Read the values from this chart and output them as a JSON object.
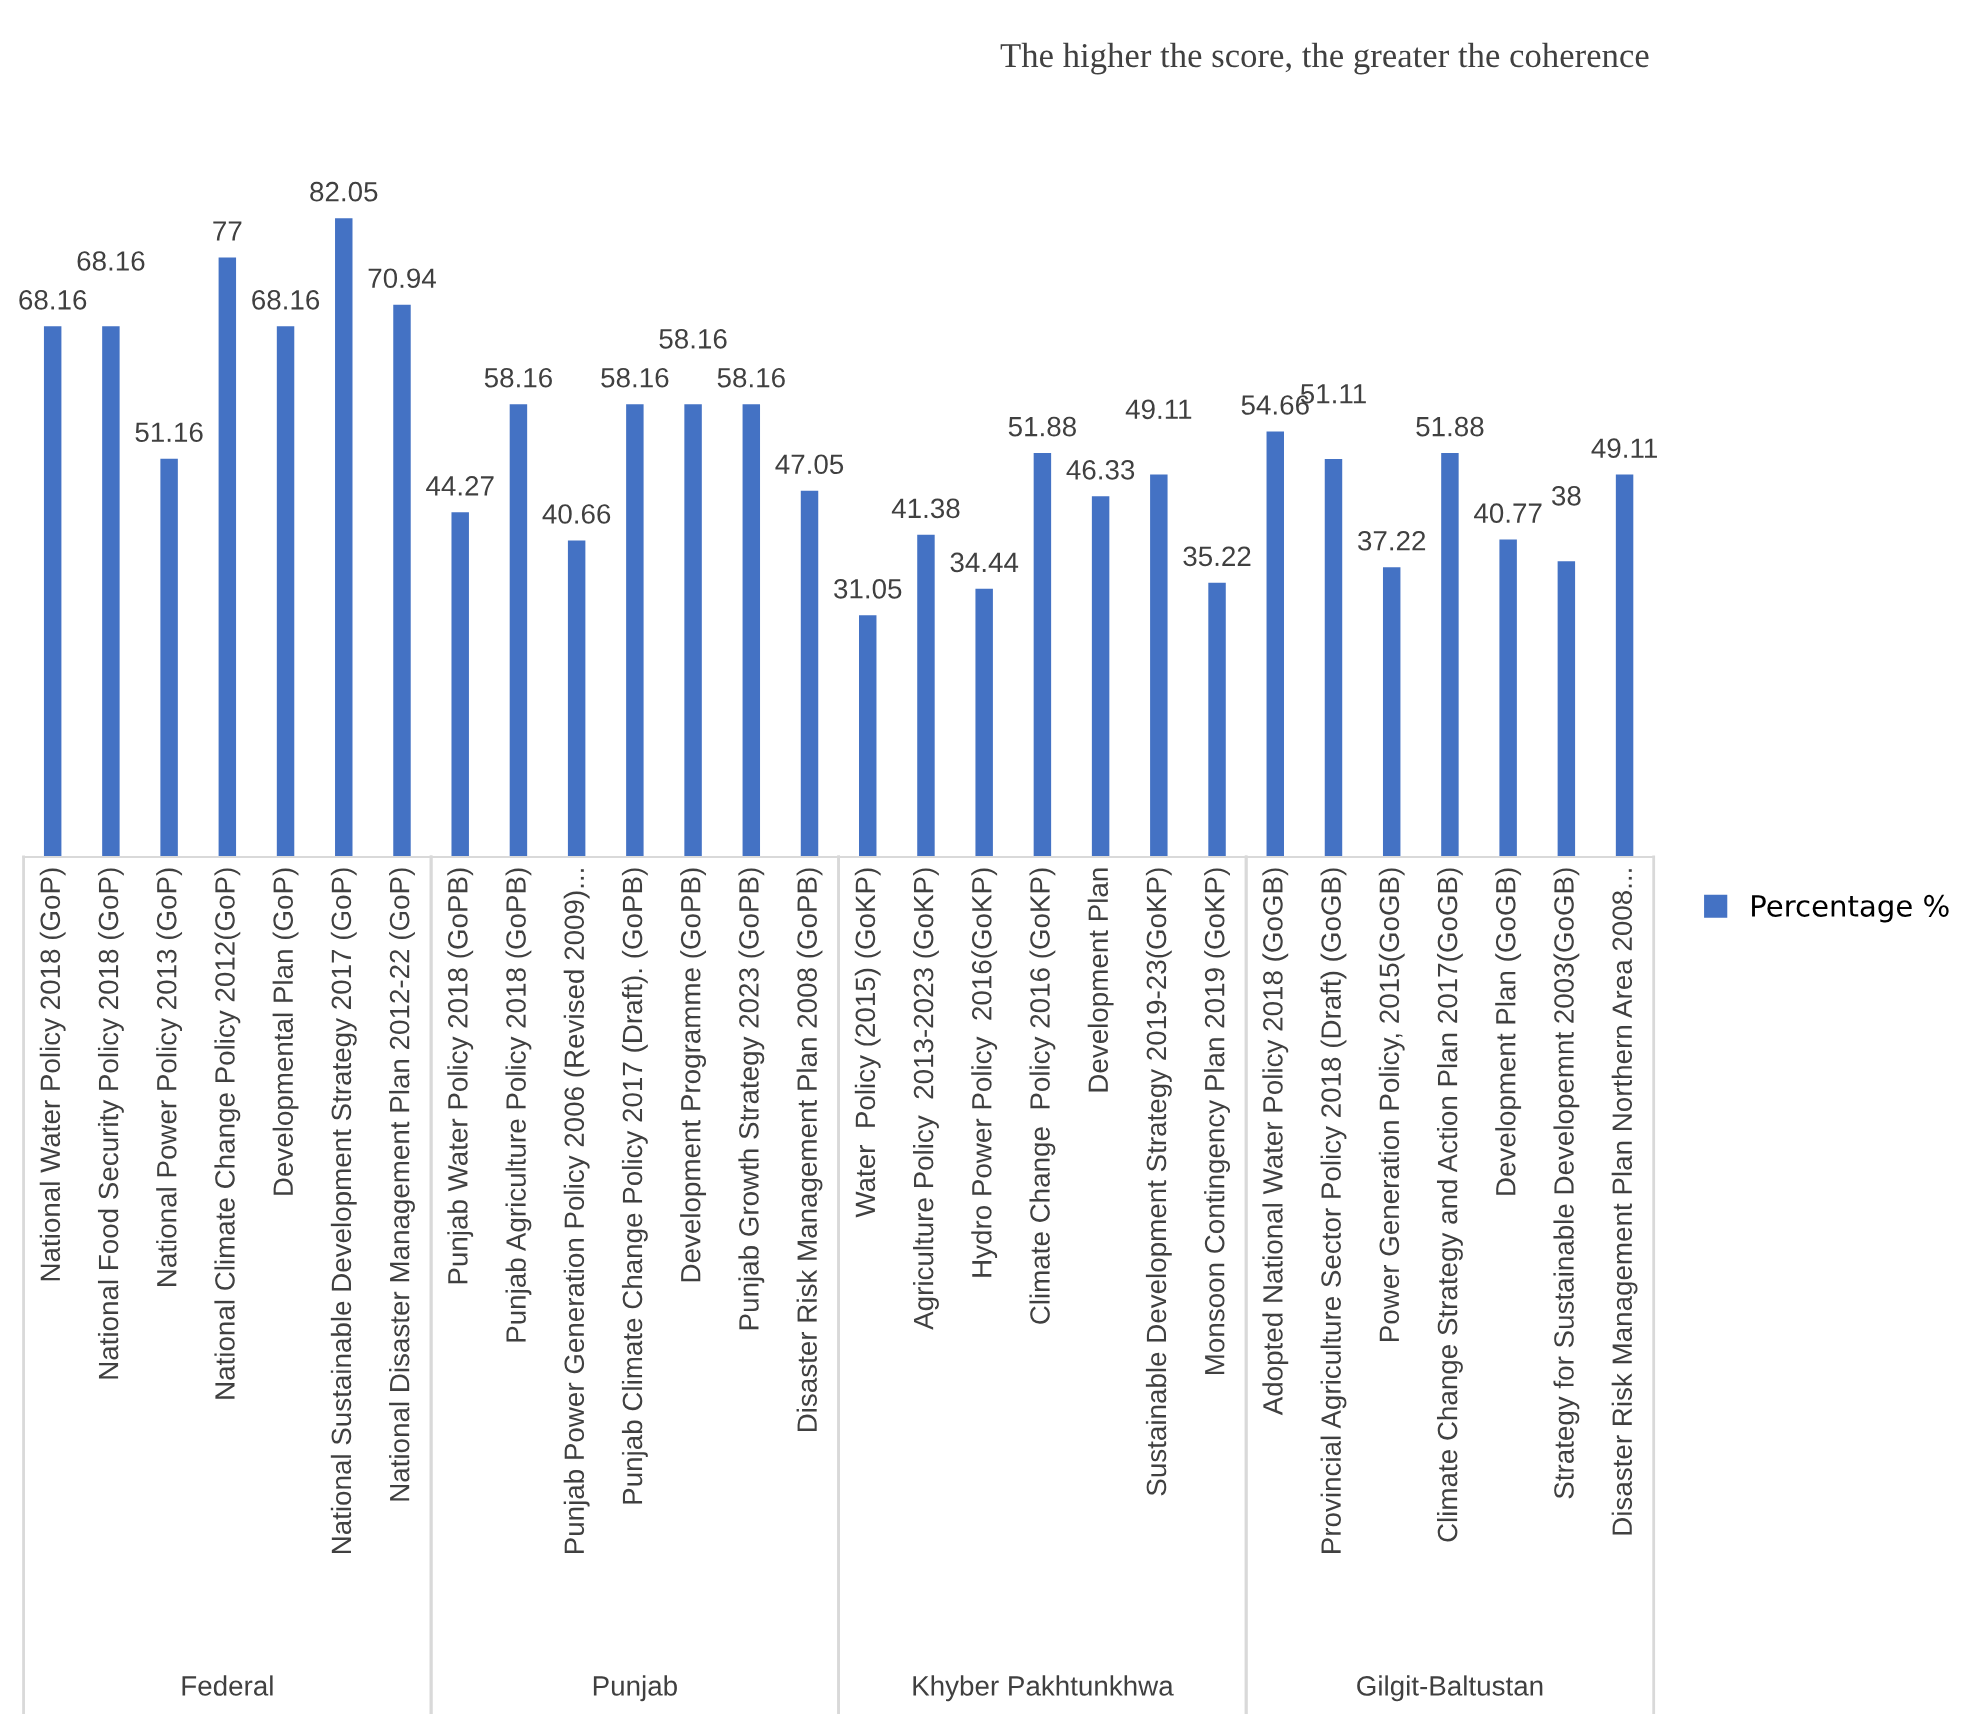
{
  "chart_data": {
    "type": "bar",
    "annotations": [
      "The higher the score, the greater the coherence",
      "Federal",
      "Punjab",
      "Khyber Pakhtunkhwa",
      "Gilgit-Baltustan"
    ],
    "categories": [
      "National Water Policy 2018 (GoP)",
      "National Food Security Policy 2018 (GoP)",
      "National Power Policy 2013 (GoP)",
      "National Climate Change Policy 2012(GoP)",
      "Developmental Plan (GoP)",
      "National Sustainable Development Strategy 2017 (GoP)",
      "National Disaster Management Plan 2012-22 (GoP)",
      "Punjab Water Policy 2018 (GoPB)",
      "Punjab Agriculture Policy 2018 (GoPB)",
      "Punjab Power Generation Policy 2006 (Revised 2009)...",
      "Punjab Climate Change Policy 2017 (Draft). (GoPB)",
      "Development Programme (GoPB)",
      "Punjab Growth Strategy 2023 (GoPB)",
      "Disaster Risk Management Plan 2008 (GoPB)",
      "Water  Policy (2015) (GoKP)",
      "Agriculture Policy  2013-2023 (GoKP)",
      "Hydro Power Policy  2016(GoKP)",
      "Climate Change  Policy 2016 (GoKP)",
      "Development Plan",
      "Sustainable Development Strategy 2019-23(GoKP)",
      "Monsoon Contingency Plan 2019 (GoKP)",
      "Adopted National Water Policy 2018 (GoGB)",
      "Provincial Agriculture Sector Policy 2018 (Draft) (GoGB)",
      "Power Generation Policy, 2015(GoGB)",
      "Climate Change Strategy and Action Plan 2017(GoGB)",
      "Development Plan (GoGB)",
      "Strategy for Sustainable Developemnt 2003(GoGB)",
      "Disaster Risk Management Plan Northern Area 2008..."
    ],
    "series": [
      {
        "name": "Percentage %",
        "color": "#4472c4",
        "values": [
          68.16,
          68.16,
          51.16,
          77,
          68.16,
          82.05,
          70.94,
          44.27,
          58.16,
          40.66,
          58.16,
          58.16,
          58.16,
          47.05,
          31.05,
          41.38,
          34.44,
          51.88,
          46.33,
          49.11,
          35.22,
          54.66,
          51.11,
          37.22,
          51.88,
          40.77,
          38,
          49.11
        ]
      }
    ],
    "data_labels": true,
    "legend": "right",
    "grid": false
  }
}
